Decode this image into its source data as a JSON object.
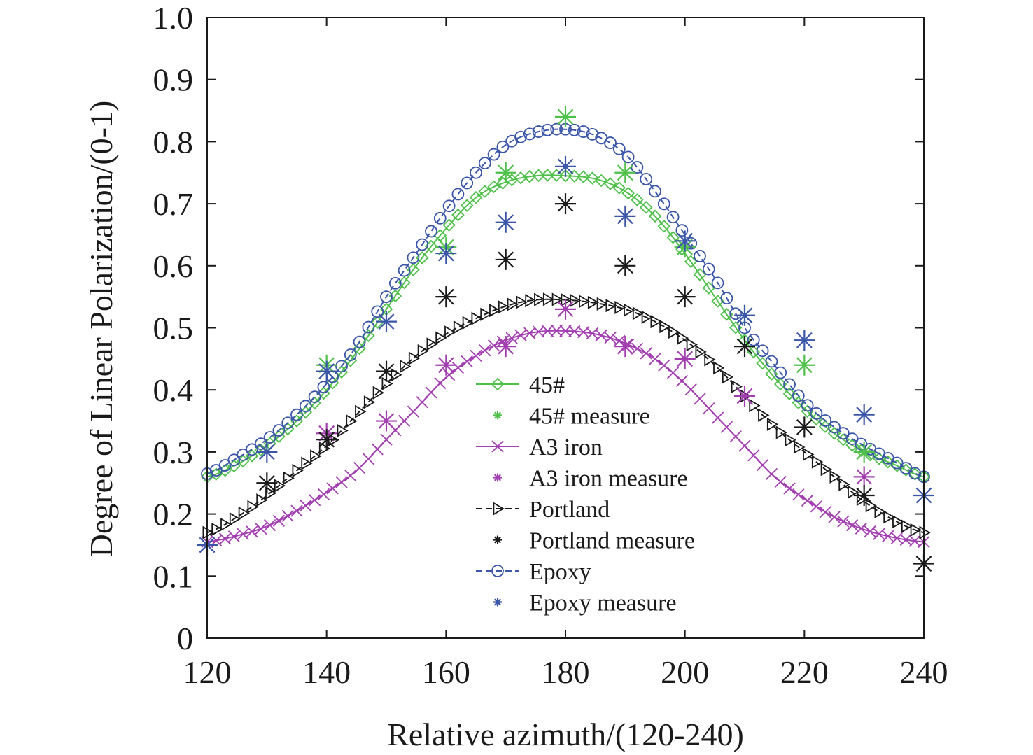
{
  "chart_data": {
    "type": "line",
    "title": "",
    "xlabel": "Relative azimuth/(120-240)",
    "ylabel": "Degree of Linear Polarization/(0-1)",
    "xlim": [
      120,
      240
    ],
    "ylim": [
      0,
      1.0
    ],
    "x_ticks": [
      "120",
      "140",
      "160",
      "180",
      "200",
      "220",
      "240"
    ],
    "y_ticks": [
      "0",
      "0.1",
      "0.2",
      "0.3",
      "0.4",
      "0.5",
      "0.6",
      "0.7",
      "0.8",
      "0.9",
      "1.0"
    ],
    "grid": false,
    "legend_position": "lower-center",
    "series": [
      {
        "name": "45#",
        "kind": "model",
        "color": "#4fc04a",
        "line_style": "solid",
        "marker": "diamond",
        "x": [
          120,
          125,
          130,
          135,
          140,
          145,
          150,
          155,
          160,
          165,
          170,
          175,
          180,
          185,
          190,
          195,
          200,
          205,
          210,
          215,
          220,
          225,
          230,
          235,
          240
        ],
        "y": [
          0.26,
          0.28,
          0.31,
          0.35,
          0.4,
          0.46,
          0.53,
          0.6,
          0.66,
          0.71,
          0.735,
          0.745,
          0.745,
          0.74,
          0.72,
          0.68,
          0.62,
          0.55,
          0.48,
          0.42,
          0.37,
          0.33,
          0.3,
          0.28,
          0.26
        ]
      },
      {
        "name": "45# measure",
        "kind": "measure",
        "color": "#4fc04a",
        "marker": "asterisk",
        "x": [
          140,
          160,
          170,
          180,
          190,
          200,
          210,
          220,
          230
        ],
        "y": [
          0.44,
          0.63,
          0.75,
          0.84,
          0.75,
          0.63,
          0.52,
          0.44,
          0.3
        ]
      },
      {
        "name": "A3 iron",
        "kind": "model",
        "color": "#a23fb0",
        "line_style": "solid",
        "marker": "x",
        "x": [
          120,
          125,
          130,
          135,
          140,
          145,
          150,
          155,
          160,
          165,
          170,
          175,
          180,
          185,
          190,
          195,
          200,
          205,
          210,
          215,
          220,
          225,
          230,
          235,
          240
        ],
        "y": [
          0.155,
          0.165,
          0.18,
          0.205,
          0.235,
          0.27,
          0.32,
          0.37,
          0.42,
          0.455,
          0.48,
          0.493,
          0.495,
          0.49,
          0.475,
          0.45,
          0.41,
          0.36,
          0.31,
          0.26,
          0.225,
          0.195,
          0.175,
          0.162,
          0.155
        ]
      },
      {
        "name": "A3 iron measure",
        "kind": "measure",
        "color": "#a23fb0",
        "marker": "asterisk",
        "x": [
          140,
          150,
          160,
          170,
          180,
          190,
          200,
          210,
          230
        ],
        "y": [
          0.33,
          0.35,
          0.44,
          0.47,
          0.53,
          0.47,
          0.45,
          0.39,
          0.26
        ]
      },
      {
        "name": "Portland",
        "kind": "model",
        "color": "#1a1a1a",
        "line_style": "dashed",
        "marker": "triangle-right",
        "x": [
          120,
          125,
          130,
          135,
          140,
          145,
          150,
          155,
          160,
          165,
          170,
          175,
          180,
          185,
          190,
          195,
          200,
          205,
          210,
          215,
          220,
          225,
          230,
          235,
          240
        ],
        "y": [
          0.17,
          0.195,
          0.23,
          0.27,
          0.31,
          0.36,
          0.41,
          0.455,
          0.49,
          0.515,
          0.535,
          0.545,
          0.545,
          0.54,
          0.53,
          0.51,
          0.48,
          0.44,
          0.39,
          0.34,
          0.3,
          0.26,
          0.22,
          0.19,
          0.17
        ]
      },
      {
        "name": "Portland measure",
        "kind": "measure",
        "color": "#1a1a1a",
        "marker": "asterisk",
        "x": [
          130,
          140,
          150,
          160,
          170,
          180,
          190,
          200,
          210,
          220,
          230,
          240
        ],
        "y": [
          0.25,
          0.32,
          0.43,
          0.55,
          0.61,
          0.7,
          0.6,
          0.55,
          0.47,
          0.34,
          0.23,
          0.12
        ]
      },
      {
        "name": "Epoxy",
        "kind": "model",
        "color": "#3b55a8",
        "line_style": "dashed",
        "marker": "circle",
        "x": [
          120,
          125,
          130,
          135,
          140,
          145,
          150,
          155,
          160,
          165,
          170,
          175,
          180,
          185,
          190,
          195,
          200,
          205,
          210,
          215,
          220,
          225,
          230,
          235,
          240
        ],
        "y": [
          0.265,
          0.29,
          0.32,
          0.36,
          0.41,
          0.47,
          0.55,
          0.62,
          0.69,
          0.75,
          0.795,
          0.815,
          0.82,
          0.81,
          0.78,
          0.72,
          0.65,
          0.58,
          0.5,
          0.44,
          0.38,
          0.34,
          0.31,
          0.285,
          0.26
        ]
      },
      {
        "name": "Epoxy measure",
        "kind": "measure",
        "color": "#3b55a8",
        "marker": "asterisk",
        "x": [
          120,
          130,
          140,
          150,
          160,
          170,
          180,
          190,
          200,
          210,
          220,
          230,
          240
        ],
        "y": [
          0.15,
          0.3,
          0.43,
          0.51,
          0.62,
          0.67,
          0.76,
          0.68,
          0.64,
          0.52,
          0.48,
          0.36,
          0.23
        ]
      }
    ]
  }
}
